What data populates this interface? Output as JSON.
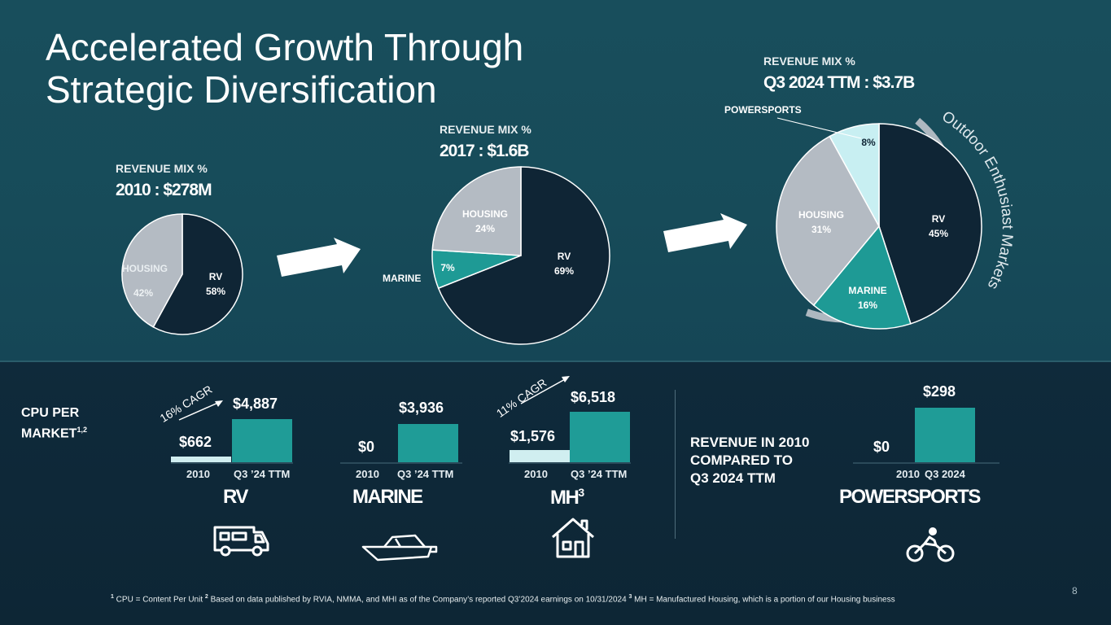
{
  "title_line1": "Accelerated Growth Through",
  "title_line2": "Strategic Diversification",
  "colors": {
    "rv": "#0f2535",
    "housing": "#b4bbc3",
    "marine": "#1e9a95",
    "powersports": "#c8eff2",
    "bar": "#1f9c97",
    "bar_light": "#d0eef0"
  },
  "chart_data": [
    {
      "type": "pie",
      "title": "REVENUE MIX %",
      "subtitle": "2010 : $278M",
      "slices": [
        {
          "key": "rv",
          "label": "RV",
          "pct": "58%",
          "value": 58
        },
        {
          "key": "housing",
          "label": "HOUSING",
          "pct": "42%",
          "value": 42
        }
      ]
    },
    {
      "type": "pie",
      "title": "REVENUE MIX %",
      "subtitle": "2017 : $1.6B",
      "slices": [
        {
          "key": "rv",
          "label": "RV",
          "pct": "69%",
          "value": 69
        },
        {
          "key": "marine",
          "label": "MARINE",
          "pct": "7%",
          "value": 7
        },
        {
          "key": "housing",
          "label": "HOUSING",
          "pct": "24%",
          "value": 24
        }
      ]
    },
    {
      "type": "pie",
      "title": "REVENUE MIX %",
      "subtitle": "Q3 2024 TTM : $3.7B",
      "slices": [
        {
          "key": "rv",
          "label": "RV",
          "pct": "45%",
          "value": 45
        },
        {
          "key": "marine",
          "label": "MARINE",
          "pct": "16%",
          "value": 16
        },
        {
          "key": "housing",
          "label": "HOUSING",
          "pct": "31%",
          "value": 31
        },
        {
          "key": "powersports",
          "label": "POWERSPORTS",
          "pct": "8%",
          "value": 8
        }
      ],
      "annotation": "Outdoor Enthusiast Markets"
    },
    {
      "type": "bar",
      "title": "CPU PER MARKET",
      "market": "RV",
      "categories": [
        "2010",
        "Q3 ’24 TTM"
      ],
      "values": [
        662,
        4887
      ],
      "value_labels": [
        "$662",
        "$4,887"
      ],
      "annotation": "16% CAGR"
    },
    {
      "type": "bar",
      "market": "MARINE",
      "categories": [
        "2010",
        "Q3 ’24 TTM"
      ],
      "values": [
        0,
        3936
      ],
      "value_labels": [
        "$0",
        "$3,936"
      ]
    },
    {
      "type": "bar",
      "market": "MH",
      "categories": [
        "2010",
        "Q3 ’24 TTM"
      ],
      "values": [
        1576,
        6518
      ],
      "value_labels": [
        "$1,576",
        "$6,518"
      ],
      "annotation": "11% CAGR"
    },
    {
      "type": "bar",
      "title": "REVENUE IN 2010 COMPARED TO Q3 2024 TTM",
      "market": "POWERSPORTS",
      "categories": [
        "2010",
        "Q3 2024"
      ],
      "values": [
        0,
        298
      ],
      "value_labels": [
        "$0",
        "$298"
      ]
    }
  ],
  "cpu": {
    "line1": "CPU PER",
    "line2": "MARKET",
    "sup": "1,2"
  },
  "rev_compare": {
    "line1": "REVENUE IN 2010",
    "line2": "COMPARED TO",
    "line3": "Q3 2024 TTM"
  },
  "markets": {
    "rv": "RV",
    "marine": "MARINE",
    "mh": "MH",
    "mh_sup": "3",
    "powersports": "POWERSPORTS"
  },
  "footnote": {
    "s1": "1",
    "t1": " CPU = Content Per Unit ",
    "s2": "2",
    "t2": " Based on data published by RVIA, NMMA, and MHI as of the Company’s reported Q3’2024 earnings on 10/31/2024 ",
    "s3": "3",
    "t3": " MH = Manufactured Housing, which is a portion of our Housing business"
  },
  "page_number": "8"
}
